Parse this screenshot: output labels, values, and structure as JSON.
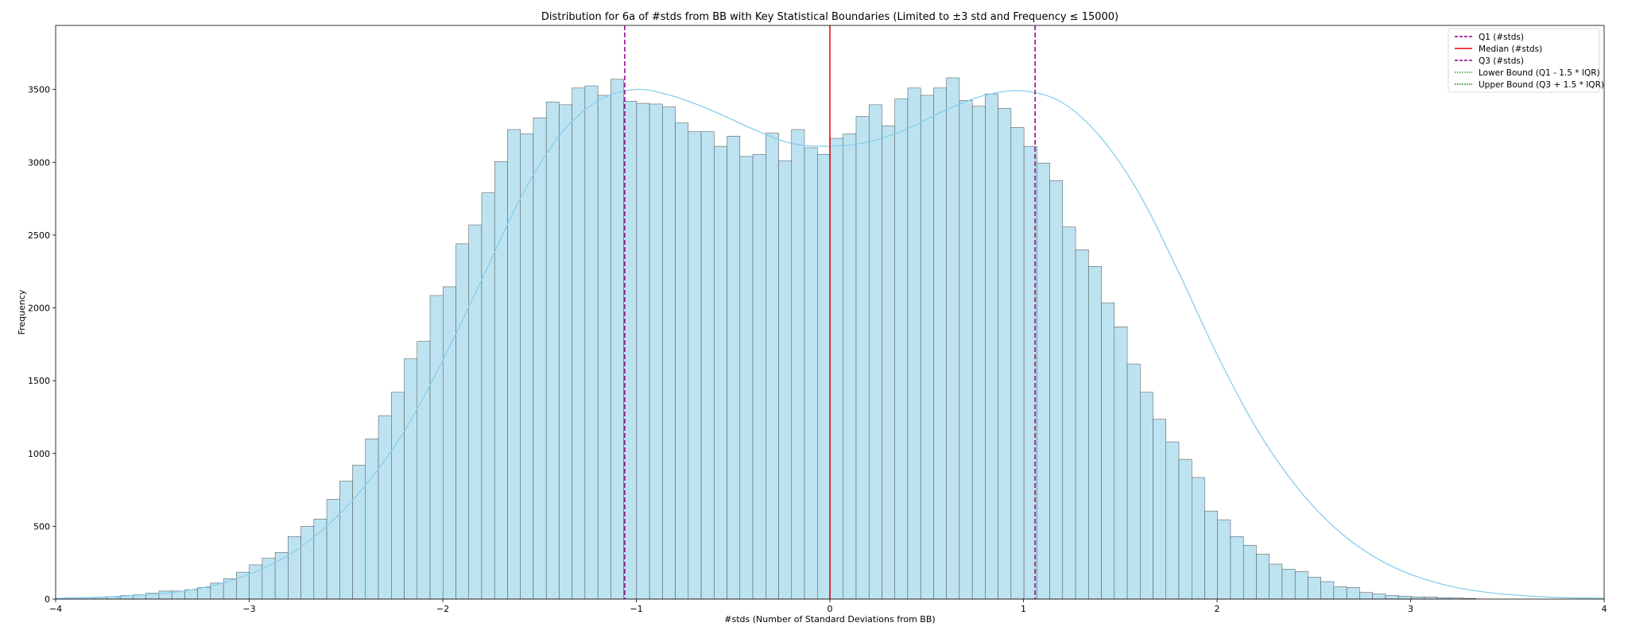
{
  "chart_data": {
    "type": "histogram",
    "title": "Distribution for 6a of #stds from BB with Key Statistical Boundaries (Limited to ±3 std and Frequency ≤ 15000)",
    "xlabel": "#stds (Number of Standard Deviations from BB)",
    "ylabel": "Frequency",
    "xlim": [
      -4,
      4
    ],
    "ylim": [
      0,
      3940
    ],
    "x_ticks": [
      -4,
      -3,
      -2,
      -1,
      0,
      1,
      2,
      3,
      4
    ],
    "x_tick_labels": [
      "−4",
      "−3",
      "−2",
      "−1",
      "0",
      "1",
      "2",
      "3",
      "4"
    ],
    "y_ticks": [
      0,
      500,
      1000,
      1500,
      2000,
      2500,
      3000,
      3500
    ],
    "y_tick_labels": [
      "0",
      "500",
      "1000",
      "1500",
      "2000",
      "2500",
      "3000",
      "3500"
    ],
    "bin_start": -4.0,
    "bin_width": 0.0667,
    "bin_counts": [
      5,
      8,
      10,
      12,
      15,
      25,
      30,
      40,
      55,
      55,
      65,
      80,
      110,
      140,
      185,
      235,
      280,
      320,
      430,
      500,
      550,
      685,
      810,
      920,
      1100,
      1260,
      1420,
      1650,
      1770,
      2085,
      2145,
      2440,
      2570,
      2790,
      3005,
      3225,
      3195,
      3305,
      3415,
      3395,
      3510,
      3525,
      3460,
      3570,
      3420,
      3405,
      3400,
      3380,
      3270,
      3210,
      3210,
      3110,
      3180,
      3040,
      3055,
      3200,
      3010,
      3225,
      3100,
      3055,
      3165,
      3195,
      3315,
      3395,
      3250,
      3435,
      3510,
      3460,
      3510,
      3580,
      3425,
      3385,
      3470,
      3370,
      3240,
      3110,
      2995,
      2875,
      2555,
      2400,
      2285,
      2035,
      1870,
      1615,
      1420,
      1235,
      1080,
      960,
      835,
      605,
      545,
      430,
      370,
      310,
      240,
      205,
      190,
      150,
      120,
      85,
      80,
      45,
      35,
      25,
      20,
      15,
      15,
      10,
      8,
      5
    ],
    "kde": {
      "x": [
        -4.0,
        -3.8,
        -3.6,
        -3.4,
        -3.2,
        -3.0,
        -2.8,
        -2.6,
        -2.4,
        -2.2,
        -2.0,
        -1.8,
        -1.6,
        -1.4,
        -1.2,
        -1.0,
        -0.8,
        -0.6,
        -0.4,
        -0.2,
        0.0,
        0.2,
        0.4,
        0.6,
        0.8,
        1.0,
        1.2,
        1.4,
        1.6,
        1.8,
        2.0,
        2.2,
        2.4,
        2.6,
        2.8,
        3.0,
        3.2,
        3.4,
        3.6,
        3.8,
        4.0
      ],
      "y": [
        5,
        12,
        25,
        45,
        90,
        170,
        300,
        500,
        780,
        1150,
        1640,
        2190,
        2750,
        3180,
        3420,
        3500,
        3450,
        3350,
        3230,
        3130,
        3110,
        3140,
        3230,
        3360,
        3460,
        3490,
        3410,
        3170,
        2780,
        2250,
        1680,
        1180,
        790,
        500,
        300,
        170,
        90,
        45,
        22,
        10,
        5
      ],
      "color": "#87ceeb"
    },
    "bar_fill": "#bde3f1",
    "bar_edge": "#4a4a4a",
    "vlines": [
      {
        "name": "Q1 (#stds)",
        "x": -1.06,
        "color": "#8b008b",
        "style": "dashed"
      },
      {
        "name": "Median (#stds)",
        "x": 0.0,
        "color": "#e8000b",
        "style": "solid"
      },
      {
        "name": "Q3 (#stds)",
        "x": 1.06,
        "color": "#8b008b",
        "style": "dashed"
      }
    ],
    "legend": {
      "position": "top-right",
      "entries": [
        {
          "label": "Q1 (#stds)",
          "color": "#8b008b",
          "style": "dashed"
        },
        {
          "label": "Median (#stds)",
          "color": "#e8000b",
          "style": "solid"
        },
        {
          "label": "Q3 (#stds)",
          "color": "#8b008b",
          "style": "dashed"
        },
        {
          "label": "Lower Bound (Q1 - 1.5 * IQR)",
          "color": "#2ca02c",
          "style": "dotted"
        },
        {
          "label": "Upper Bound (Q3 + 1.5 * IQR)",
          "color": "#008000",
          "style": "dotted"
        }
      ]
    }
  }
}
